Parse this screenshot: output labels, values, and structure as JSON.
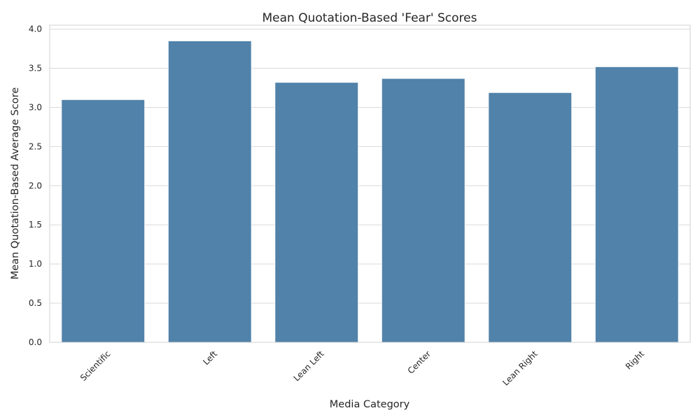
{
  "chart_data": {
    "type": "bar",
    "title": "Mean Quotation-Based 'Fear' Scores",
    "xlabel": "Media Category",
    "ylabel": "Mean Quotation-Based Average Score",
    "categories": [
      "Scientific",
      "Left",
      "Lean Left",
      "Center",
      "Lean Right",
      "Right"
    ],
    "values": [
      3.1,
      3.85,
      3.32,
      3.37,
      3.19,
      3.52
    ],
    "ylim": [
      0,
      4.05
    ],
    "yticks": [
      "0.0",
      "0.5",
      "1.0",
      "1.5",
      "2.0",
      "2.5",
      "3.0",
      "3.5",
      "4.0"
    ],
    "grid": "horizontal",
    "bar_color": "#5182a9",
    "legend": "none"
  }
}
